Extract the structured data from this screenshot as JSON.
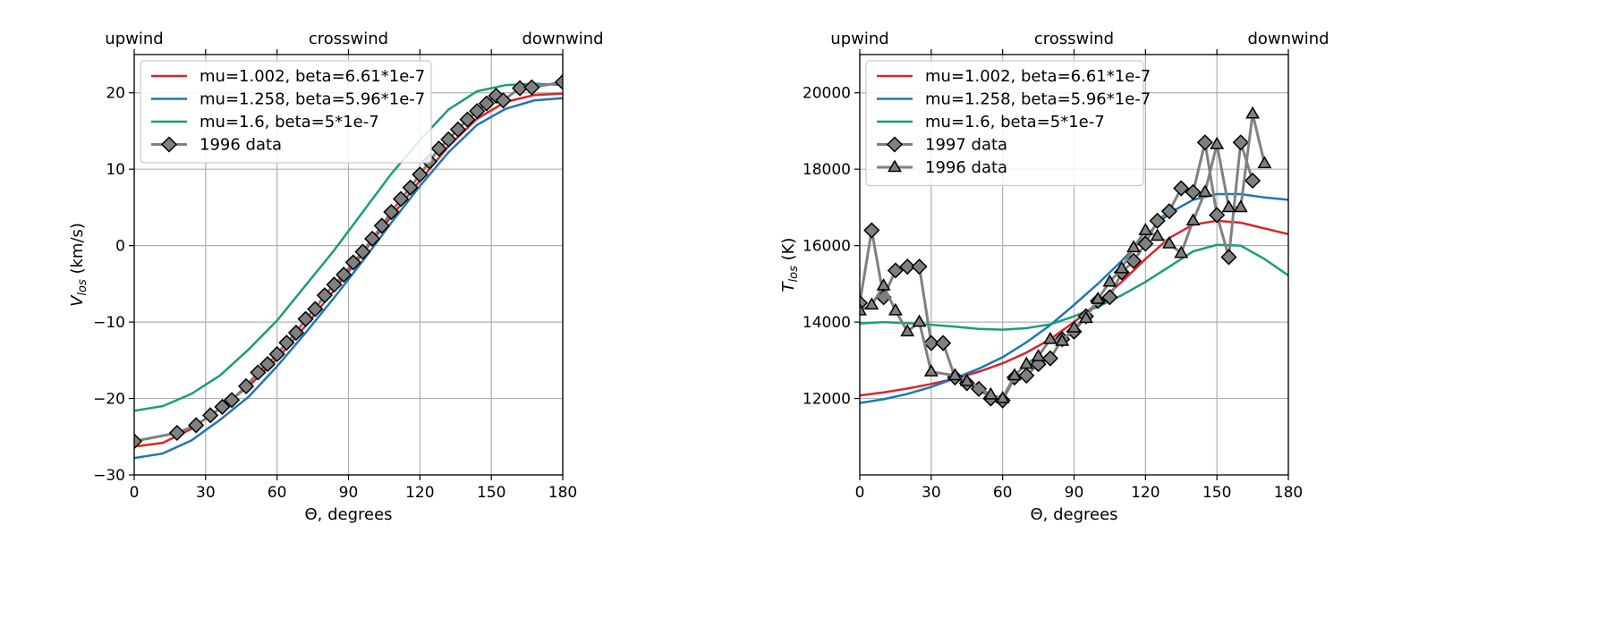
{
  "chart_data": [
    {
      "type": "line",
      "title": "",
      "xlabel": "Θ, degrees",
      "ylabel": "V",
      "ylabel_sub": "los",
      "ylabel_unit": " (km/s)",
      "xlim": [
        0,
        180
      ],
      "ylim": [
        -30,
        25
      ],
      "xticks": [
        0,
        30,
        60,
        90,
        120,
        150,
        180
      ],
      "yticks": [
        -30,
        -20,
        -10,
        0,
        10,
        20
      ],
      "ytick_labels": [
        "−30",
        "−20",
        "−10",
        "0",
        "10",
        "20"
      ],
      "top_labels": [
        {
          "x": 0,
          "text": "upwind"
        },
        {
          "x": 90,
          "text": "crosswind"
        },
        {
          "x": 180,
          "text": "downwind"
        }
      ],
      "grid": true,
      "legend_position": "top-left",
      "series": [
        {
          "name": "mu=1.002, beta=6.61*1e-7",
          "color": "#d62728",
          "x": [
            0,
            12,
            24,
            36,
            48,
            60,
            72,
            84,
            96,
            108,
            120,
            132,
            144,
            156,
            168,
            180
          ],
          "y": [
            -26.3,
            -25.8,
            -24.0,
            -21.3,
            -18.4,
            -14.8,
            -10.5,
            -5.8,
            -1.0,
            3.8,
            8.5,
            13.0,
            16.6,
            18.8,
            19.7,
            19.9
          ]
        },
        {
          "name": "mu=1.258, beta=5.96*1e-7",
          "color": "#1f77b4",
          "x": [
            0,
            12,
            24,
            36,
            48,
            60,
            72,
            84,
            96,
            108,
            120,
            132,
            144,
            156,
            168,
            180
          ],
          "y": [
            -27.8,
            -27.2,
            -25.5,
            -22.8,
            -19.8,
            -15.8,
            -11.4,
            -6.8,
            -2.0,
            3.0,
            7.8,
            12.2,
            15.8,
            17.9,
            19.0,
            19.3
          ]
        },
        {
          "name": "mu=1.6, beta=5*1e-7",
          "color": "#1a9e77",
          "x": [
            0,
            12,
            24,
            36,
            48,
            60,
            72,
            84,
            96,
            108,
            120,
            132,
            144,
            156,
            168,
            180
          ],
          "y": [
            -21.6,
            -21.0,
            -19.4,
            -17.0,
            -13.6,
            -9.8,
            -5.2,
            -0.6,
            4.4,
            9.4,
            13.8,
            17.8,
            20.2,
            21.0,
            21.2,
            21.0
          ]
        },
        {
          "name": "1996 data",
          "color": "#7f7f7f",
          "marker": "diamond",
          "x": [
            0,
            18,
            26,
            32,
            37,
            41,
            47,
            52,
            56,
            60,
            64,
            68,
            72,
            76,
            80,
            84,
            88,
            92,
            96,
            100,
            104,
            108,
            112,
            116,
            120,
            124,
            128,
            132,
            136,
            140,
            144,
            148,
            152,
            155,
            162,
            167,
            180
          ],
          "y": [
            -25.6,
            -24.5,
            -23.5,
            -22.2,
            -21.1,
            -20.2,
            -18.4,
            -16.6,
            -15.5,
            -14.2,
            -12.7,
            -11.4,
            -9.6,
            -8.3,
            -6.5,
            -5.1,
            -3.8,
            -2.2,
            -0.8,
            0.9,
            2.6,
            4.4,
            6.1,
            7.6,
            9.3,
            11.0,
            12.7,
            13.9,
            15.2,
            16.5,
            17.6,
            18.6,
            19.6,
            19.0,
            20.6,
            20.7,
            21.4
          ]
        }
      ]
    },
    {
      "type": "line",
      "title": "",
      "xlabel": "Θ, degrees",
      "ylabel": "T",
      "ylabel_sub": "los",
      "ylabel_unit": " (K)",
      "xlim": [
        0,
        180
      ],
      "ylim": [
        10000,
        21000
      ],
      "xticks": [
        0,
        30,
        60,
        90,
        120,
        150,
        180
      ],
      "yticks": [
        12000,
        14000,
        16000,
        18000,
        20000
      ],
      "ytick_labels": [
        "12000",
        "14000",
        "16000",
        "18000",
        "20000"
      ],
      "top_labels": [
        {
          "x": 0,
          "text": "upwind"
        },
        {
          "x": 90,
          "text": "crosswind"
        },
        {
          "x": 180,
          "text": "downwind"
        }
      ],
      "grid": true,
      "legend_position": "top-left",
      "series": [
        {
          "name": "mu=1.002, beta=6.61*1e-7",
          "color": "#d62728",
          "x": [
            0,
            10,
            20,
            30,
            40,
            50,
            60,
            70,
            80,
            90,
            100,
            110,
            120,
            130,
            140,
            150,
            160,
            170,
            180
          ],
          "y": [
            12080,
            12160,
            12260,
            12380,
            12520,
            12700,
            12920,
            13200,
            13550,
            14000,
            14500,
            15050,
            15650,
            16200,
            16550,
            16650,
            16600,
            16450,
            16300
          ]
        },
        {
          "name": "mu=1.258, beta=5.96*1e-7",
          "color": "#1f77b4",
          "x": [
            0,
            10,
            20,
            30,
            40,
            50,
            60,
            70,
            80,
            90,
            100,
            110,
            120,
            130,
            140,
            150,
            160,
            170,
            180
          ],
          "y": [
            11880,
            11980,
            12120,
            12300,
            12530,
            12780,
            13080,
            13470,
            13920,
            14450,
            15000,
            15600,
            16250,
            16850,
            17200,
            17350,
            17350,
            17260,
            17200
          ]
        },
        {
          "name": "mu=1.6, beta=5*1e-7",
          "color": "#1a9e77",
          "x": [
            0,
            10,
            20,
            30,
            40,
            50,
            60,
            70,
            80,
            90,
            100,
            110,
            120,
            130,
            140,
            150,
            160,
            170,
            180
          ],
          "y": [
            13960,
            14000,
            13970,
            13930,
            13880,
            13820,
            13800,
            13840,
            13940,
            14150,
            14400,
            14700,
            15050,
            15450,
            15850,
            16020,
            16000,
            15650,
            15220
          ]
        },
        {
          "name": "1997 data",
          "color": "#7f7f7f",
          "marker": "diamond",
          "x": [
            0,
            5,
            10,
            15,
            20,
            25,
            30,
            35,
            40,
            45,
            50,
            55,
            60,
            65,
            70,
            75,
            80,
            85,
            90,
            95,
            100,
            105,
            110,
            115,
            120,
            125,
            130,
            135,
            140,
            145,
            150,
            155,
            160,
            165
          ],
          "y": [
            14500,
            16400,
            14650,
            15350,
            15450,
            15450,
            13450,
            13450,
            12550,
            12400,
            12250,
            12000,
            11950,
            12550,
            12600,
            12900,
            13050,
            13550,
            13750,
            14150,
            14550,
            14650,
            15300,
            15600,
            16050,
            16650,
            16900,
            17500,
            17400,
            18700,
            16800,
            15700,
            18700,
            17700
          ]
        },
        {
          "name": "1996 data",
          "color": "#7f7f7f",
          "marker": "triangle",
          "x": [
            0,
            5,
            10,
            15,
            20,
            25,
            30,
            40,
            45,
            55,
            60,
            65,
            70,
            75,
            80,
            85,
            90,
            95,
            100,
            105,
            110,
            115,
            120,
            125,
            130,
            135,
            140,
            145,
            150,
            155,
            160,
            165,
            170
          ],
          "y": [
            14300,
            14450,
            14950,
            14300,
            13750,
            14000,
            12700,
            12600,
            12450,
            12100,
            12000,
            12600,
            12900,
            13100,
            13550,
            13500,
            13850,
            14100,
            14600,
            15050,
            15400,
            15950,
            16400,
            16250,
            16050,
            15800,
            16650,
            17400,
            18650,
            17000,
            17000,
            19450,
            18150
          ]
        }
      ]
    }
  ]
}
